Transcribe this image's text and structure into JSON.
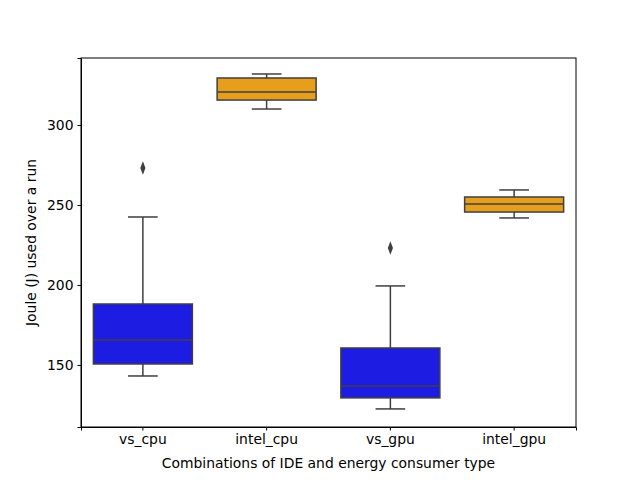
{
  "chart_data": {
    "type": "box",
    "xlabel": "Combinations of IDE and energy consumer type",
    "ylabel": "Joule (J) used over a run",
    "categories": [
      "vs_cpu",
      "intel_cpu",
      "vs_gpu",
      "intel_gpu"
    ],
    "boxes": [
      {
        "low": 143.1,
        "q1": 150.6,
        "median": 165.6,
        "q3": 188.1,
        "high": 242.5,
        "outliers": [
          273.1
        ]
      },
      {
        "low": 310.0,
        "q1": 315.6,
        "median": 320.6,
        "q3": 329.4,
        "high": 331.9,
        "outliers": []
      },
      {
        "low": 122.5,
        "q1": 129.4,
        "median": 136.9,
        "q3": 160.6,
        "high": 199.4,
        "outliers": [
          223.1
        ]
      },
      {
        "low": 241.9,
        "q1": 245.6,
        "median": 250.6,
        "q3": 255.0,
        "high": 259.4,
        "outliers": []
      }
    ],
    "colors": [
      "#1c1ce3",
      "#e69f1c",
      "#1c1ce3",
      "#e69f1c"
    ],
    "ylim": [
      111.2,
      341.9
    ],
    "yticks": [
      150,
      200,
      250,
      300
    ],
    "grid": false
  }
}
